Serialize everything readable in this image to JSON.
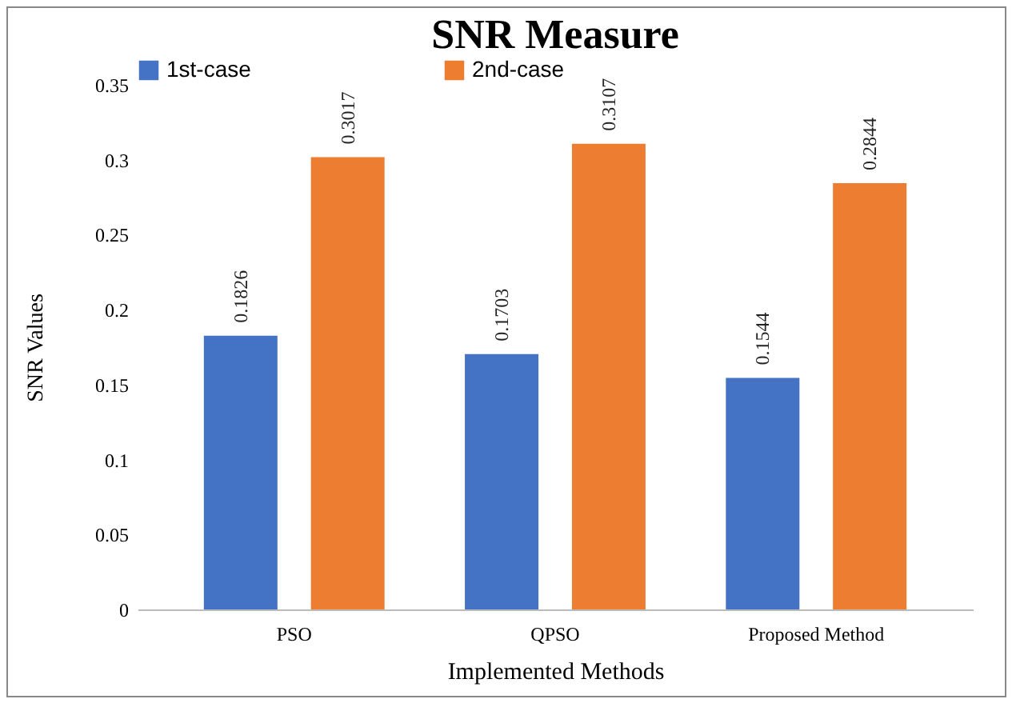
{
  "chart_data": {
    "type": "bar",
    "title": "SNR Measure",
    "xlabel": "Implemented Methods",
    "ylabel": "SNR Values",
    "categories": [
      "PSO",
      "QPSO",
      "Proposed Method"
    ],
    "series": [
      {
        "name": "1st-case",
        "color": "#4472c4",
        "values": [
          0.1826,
          0.1703,
          0.1544
        ]
      },
      {
        "name": "2nd-case",
        "color": "#ed7d31",
        "values": [
          0.3017,
          0.3107,
          0.2844
        ]
      }
    ],
    "ylim": [
      0,
      0.35
    ],
    "yticks": [
      0,
      0.05,
      0.1,
      0.15,
      0.2,
      0.25,
      0.3,
      0.35
    ],
    "grid": false,
    "legend": "top",
    "data_labels": true
  }
}
